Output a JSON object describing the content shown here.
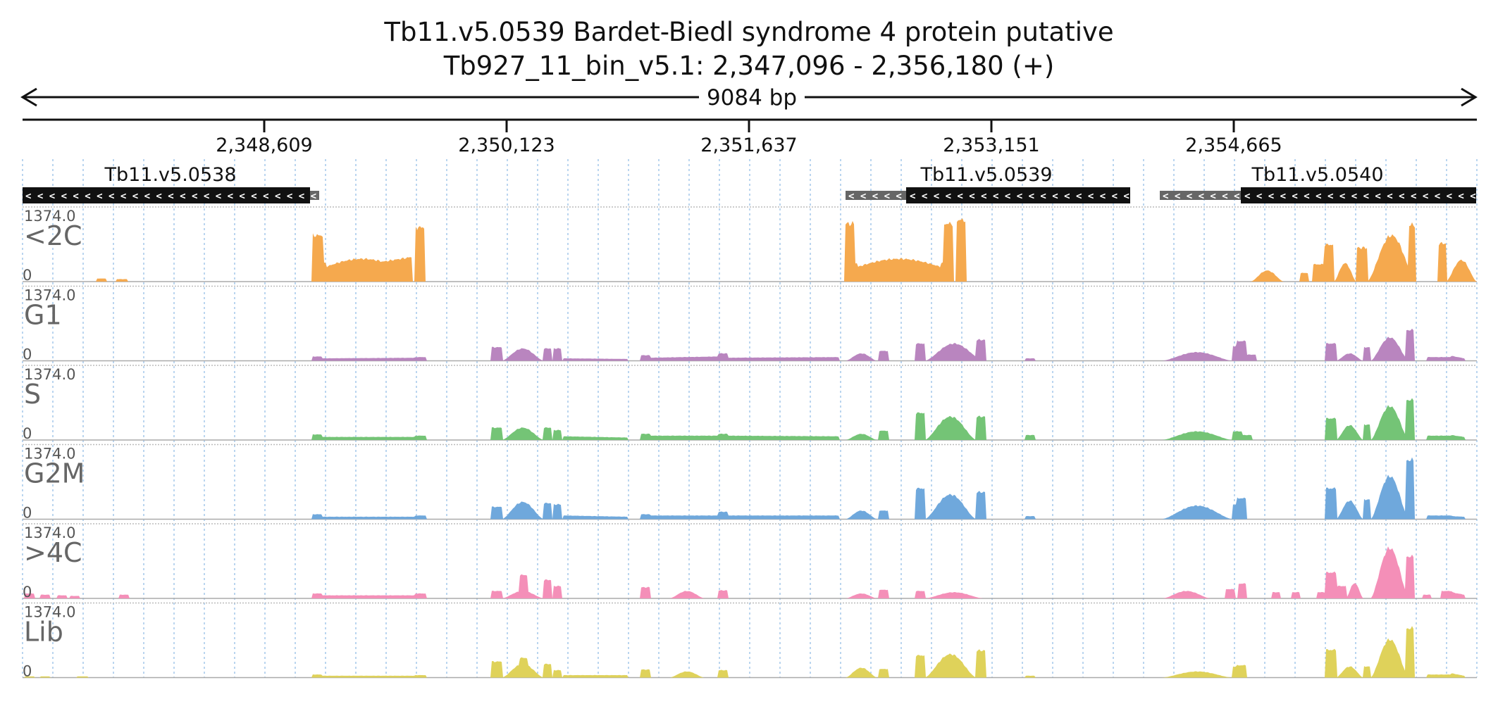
{
  "header": {
    "title_line1": "Tb11.v5.0539  Bardet-Biedl syndrome 4 protein  putative",
    "title_line2": "Tb927_11_bin_v5.1: 2,347,096 - 2,356,180 (+)",
    "span_label": "9084 bp"
  },
  "ruler": {
    "ticks": [
      "2,348,609",
      "2,350,123",
      "2,351,637",
      "2,353,151",
      "2,354,665"
    ]
  },
  "genes": [
    {
      "name": "Tb11.v5.0538",
      "strand": "-"
    },
    {
      "name": "Tb11.v5.0539",
      "strand": "-"
    },
    {
      "name": "Tb11.v5.0540",
      "strand": "-"
    }
  ],
  "tracks": [
    {
      "name": "<2C",
      "max_label": "1374.0",
      "min_label": "0",
      "color": "#f5a94e"
    },
    {
      "name": "G1",
      "max_label": "1374.0",
      "min_label": "0",
      "color": "#b985bf"
    },
    {
      "name": "S",
      "max_label": "1374.0",
      "min_label": "0",
      "color": "#74c476"
    },
    {
      "name": "G2M",
      "max_label": "1374.0",
      "min_label": "0",
      "color": "#6fa8dc"
    },
    {
      "name": ">4C",
      "max_label": "1374.0",
      "min_label": "0",
      "color": "#f48fb8"
    },
    {
      "name": "Lib",
      "max_label": "1374.0",
      "min_label": "0",
      "color": "#dfd25a"
    }
  ]
}
